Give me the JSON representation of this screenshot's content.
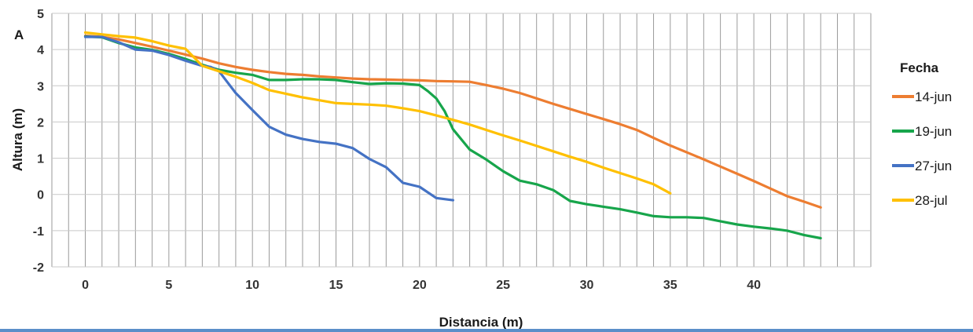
{
  "chart_data": {
    "type": "line",
    "panel_label": "A",
    "xlabel": "Distancia (m)",
    "ylabel": "Altura (m)",
    "xlim": [
      -2,
      47
    ],
    "ylim": [
      -2,
      5
    ],
    "xticks": [
      0,
      5,
      10,
      15,
      20,
      25,
      30,
      35,
      40
    ],
    "yticks": [
      -2,
      -1,
      0,
      1,
      2,
      3,
      4,
      5
    ],
    "grid": "vertical every 1 m; horizontal every 1 m",
    "legend": {
      "title": "Fecha",
      "position": "right"
    },
    "series": [
      {
        "name": "14-jun",
        "color": "#ED7D31",
        "points": [
          [
            0,
            4.38
          ],
          [
            1,
            4.35
          ],
          [
            2,
            4.28
          ],
          [
            3,
            4.18
          ],
          [
            4,
            4.08
          ],
          [
            5,
            3.97
          ],
          [
            6,
            3.86
          ],
          [
            7,
            3.75
          ],
          [
            8,
            3.62
          ],
          [
            9,
            3.52
          ],
          [
            10,
            3.44
          ],
          [
            11,
            3.38
          ],
          [
            12,
            3.33
          ],
          [
            13,
            3.3
          ],
          [
            14,
            3.26
          ],
          [
            15,
            3.23
          ],
          [
            16,
            3.2
          ],
          [
            17,
            3.18
          ],
          [
            18,
            3.17
          ],
          [
            19,
            3.16
          ],
          [
            20,
            3.15
          ],
          [
            21,
            3.13
          ],
          [
            22,
            3.12
          ],
          [
            23,
            3.11
          ],
          [
            24,
            3.02
          ],
          [
            25,
            2.92
          ],
          [
            26,
            2.8
          ],
          [
            27,
            2.65
          ],
          [
            28,
            2.5
          ],
          [
            29,
            2.36
          ],
          [
            30,
            2.22
          ],
          [
            31,
            2.08
          ],
          [
            32,
            1.94
          ],
          [
            33,
            1.78
          ],
          [
            34,
            1.56
          ],
          [
            35,
            1.35
          ],
          [
            36,
            1.16
          ],
          [
            37,
            0.97
          ],
          [
            38,
            0.77
          ],
          [
            39,
            0.57
          ],
          [
            40,
            0.37
          ],
          [
            41,
            0.16
          ],
          [
            42,
            -0.05
          ],
          [
            43,
            -0.2
          ],
          [
            44,
            -0.36
          ]
        ]
      },
      {
        "name": "19-jun",
        "color": "#17A54B",
        "points": [
          [
            0,
            4.36
          ],
          [
            1,
            4.34
          ],
          [
            2,
            4.18
          ],
          [
            3,
            4.06
          ],
          [
            4,
            3.99
          ],
          [
            5,
            3.88
          ],
          [
            6,
            3.74
          ],
          [
            7,
            3.58
          ],
          [
            8,
            3.44
          ],
          [
            9,
            3.36
          ],
          [
            10,
            3.3
          ],
          [
            11,
            3.16
          ],
          [
            12,
            3.16
          ],
          [
            13,
            3.18
          ],
          [
            14,
            3.18
          ],
          [
            15,
            3.16
          ],
          [
            16,
            3.1
          ],
          [
            17,
            3.05
          ],
          [
            18,
            3.07
          ],
          [
            19,
            3.06
          ],
          [
            20,
            3.02
          ],
          [
            20.5,
            2.85
          ],
          [
            21,
            2.65
          ],
          [
            21.5,
            2.3
          ],
          [
            22,
            1.8
          ],
          [
            23,
            1.24
          ],
          [
            24,
            0.96
          ],
          [
            25,
            0.64
          ],
          [
            26,
            0.38
          ],
          [
            27,
            0.28
          ],
          [
            28,
            0.12
          ],
          [
            29,
            -0.18
          ],
          [
            30,
            -0.27
          ],
          [
            31,
            -0.34
          ],
          [
            32,
            -0.41
          ],
          [
            33,
            -0.5
          ],
          [
            34,
            -0.6
          ],
          [
            35,
            -0.63
          ],
          [
            36,
            -0.63
          ],
          [
            37,
            -0.65
          ],
          [
            38,
            -0.74
          ],
          [
            39,
            -0.83
          ],
          [
            40,
            -0.89
          ],
          [
            41,
            -0.94
          ],
          [
            42,
            -1.0
          ],
          [
            43,
            -1.12
          ],
          [
            44,
            -1.21
          ]
        ]
      },
      {
        "name": "27-jun",
        "color": "#4472C4",
        "points": [
          [
            0,
            4.35
          ],
          [
            1,
            4.35
          ],
          [
            2,
            4.2
          ],
          [
            3,
            4.0
          ],
          [
            4,
            3.97
          ],
          [
            5,
            3.85
          ],
          [
            6,
            3.69
          ],
          [
            7,
            3.55
          ],
          [
            7.5,
            3.52
          ],
          [
            8,
            3.4
          ],
          [
            8.5,
            3.1
          ],
          [
            9,
            2.8
          ],
          [
            10,
            2.33
          ],
          [
            11,
            1.87
          ],
          [
            12,
            1.65
          ],
          [
            13,
            1.53
          ],
          [
            14,
            1.45
          ],
          [
            15,
            1.4
          ],
          [
            16,
            1.28
          ],
          [
            17,
            0.98
          ],
          [
            18,
            0.75
          ],
          [
            19,
            0.32
          ],
          [
            20,
            0.21
          ],
          [
            21,
            -0.1
          ],
          [
            22,
            -0.16
          ]
        ]
      },
      {
        "name": "28-jul",
        "color": "#FFC000",
        "points": [
          [
            0,
            4.47
          ],
          [
            1,
            4.42
          ],
          [
            2,
            4.37
          ],
          [
            3,
            4.33
          ],
          [
            4,
            4.23
          ],
          [
            5,
            4.11
          ],
          [
            6,
            4.02
          ],
          [
            7,
            3.55
          ],
          [
            8,
            3.4
          ],
          [
            9,
            3.25
          ],
          [
            10,
            3.08
          ],
          [
            11,
            2.88
          ],
          [
            12,
            2.78
          ],
          [
            13,
            2.68
          ],
          [
            14,
            2.6
          ],
          [
            15,
            2.52
          ],
          [
            16,
            2.5
          ],
          [
            17,
            2.48
          ],
          [
            18,
            2.45
          ],
          [
            19,
            2.38
          ],
          [
            20,
            2.3
          ],
          [
            21,
            2.18
          ],
          [
            22,
            2.06
          ],
          [
            23,
            1.93
          ],
          [
            24,
            1.78
          ],
          [
            25,
            1.63
          ],
          [
            26,
            1.49
          ],
          [
            27,
            1.34
          ],
          [
            28,
            1.19
          ],
          [
            29,
            1.04
          ],
          [
            30,
            0.9
          ],
          [
            31,
            0.74
          ],
          [
            32,
            0.59
          ],
          [
            33,
            0.44
          ],
          [
            34,
            0.28
          ],
          [
            35,
            0.03
          ]
        ]
      }
    ]
  }
}
